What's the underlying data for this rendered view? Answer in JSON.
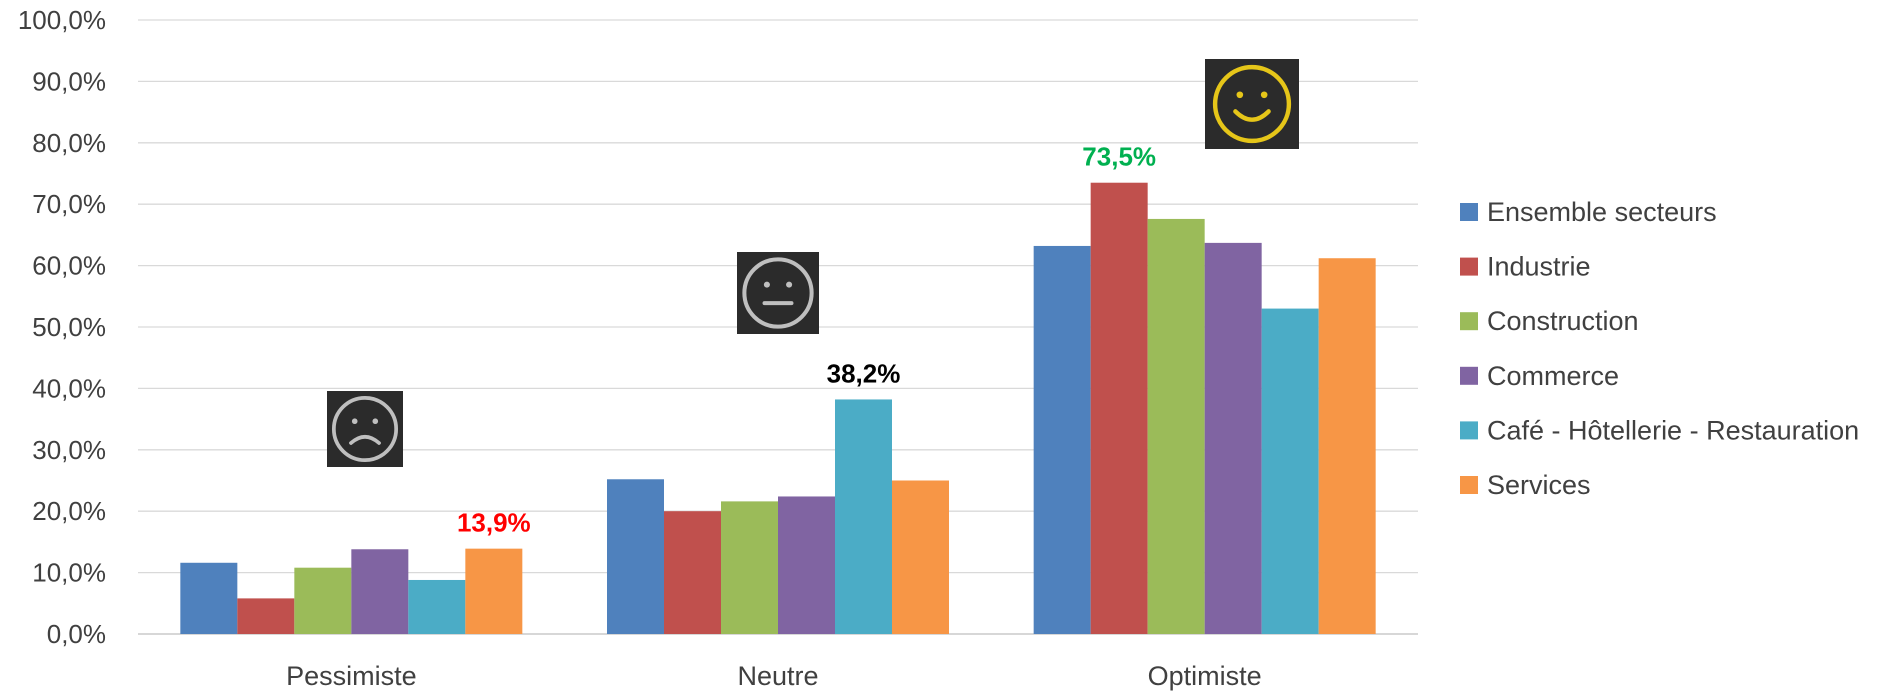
{
  "chart_data": {
    "type": "bar",
    "title": "",
    "xlabel": "",
    "ylabel": "",
    "ylim": [
      0,
      100
    ],
    "yticks": [
      "0,0%",
      "10,0%",
      "20,0%",
      "30,0%",
      "40,0%",
      "50,0%",
      "60,0%",
      "70,0%",
      "80,0%",
      "90,0%",
      "100,0%"
    ],
    "categories": [
      "Pessimiste",
      "Neutre",
      "Optimiste"
    ],
    "series": [
      {
        "name": "Ensemble secteurs",
        "color": "#4F81BD",
        "values": [
          11.6,
          25.2,
          63.2
        ]
      },
      {
        "name": "Industrie",
        "color": "#C0504D",
        "values": [
          5.8,
          20.0,
          73.5
        ]
      },
      {
        "name": "Construction",
        "color": "#9BBB59",
        "values": [
          10.8,
          21.6,
          67.6
        ]
      },
      {
        "name": "Commerce",
        "color": "#8064A2",
        "values": [
          13.8,
          22.4,
          63.7
        ]
      },
      {
        "name": "Café - Hôtellerie - Restauration",
        "color": "#4BACC6",
        "values": [
          8.8,
          38.2,
          53.0
        ]
      },
      {
        "name": "Services",
        "color": "#F79646",
        "values": [
          13.9,
          25.0,
          61.2
        ]
      }
    ],
    "annotations": [
      {
        "text": "13,9%",
        "category": "Pessimiste",
        "series": "Services",
        "color": "#FF0000"
      },
      {
        "text": "38,2%",
        "category": "Neutre",
        "series": "Café - Hôtellerie - Restauration",
        "color": "#000000"
      },
      {
        "text": "73,5%",
        "category": "Optimiste",
        "series": "Industrie",
        "color": "#00B050"
      }
    ],
    "icons": [
      {
        "category": "Pessimiste",
        "icon": "sad-face-icon",
        "face_color": "#BFBFBF",
        "bg_color": "#2B2B2B"
      },
      {
        "category": "Neutre",
        "icon": "neutral-face-icon",
        "face_color": "#BFBFBF",
        "bg_color": "#2B2B2B"
      },
      {
        "category": "Optimiste",
        "icon": "happy-face-icon",
        "face_color": "#E6C619",
        "bg_color": "#2B2B2B"
      }
    ],
    "grid": true,
    "legend_position": "right"
  }
}
